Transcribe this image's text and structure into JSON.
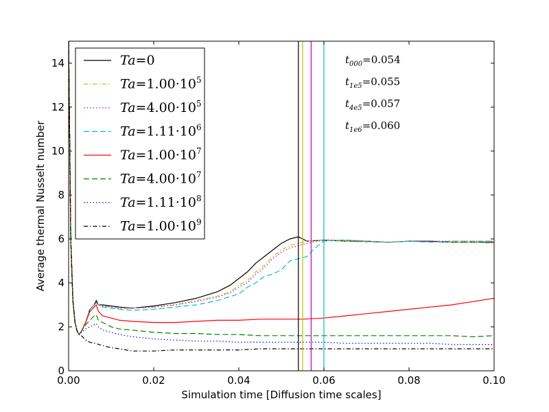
{
  "chart_data": {
    "type": "line",
    "title": "",
    "xlabel": "Simulation time [Diffusion time scales]",
    "ylabel": "Average thermal Nusselt number",
    "xlim": [
      0.0,
      0.1
    ],
    "ylim": [
      0,
      15
    ],
    "xticks": [
      "0.00",
      "0.02",
      "0.04",
      "0.06",
      "0.08",
      "0.10"
    ],
    "xtick_values": [
      0.0,
      0.02,
      0.04,
      0.06,
      0.08,
      0.1
    ],
    "yticks": [
      "0",
      "2",
      "4",
      "6",
      "8",
      "10",
      "12",
      "14"
    ],
    "ytick_values": [
      0,
      2,
      4,
      6,
      8,
      10,
      12,
      14
    ],
    "grid": false,
    "legend_position": "top-left",
    "series": [
      {
        "name": "Ta=0",
        "color": "#000000",
        "dash": "solid",
        "x": [
          0.0,
          0.0005,
          0.001,
          0.0015,
          0.002,
          0.0025,
          0.003,
          0.004,
          0.005,
          0.006,
          0.0065,
          0.007,
          0.008,
          0.01,
          0.012,
          0.015,
          0.02,
          0.025,
          0.03,
          0.035,
          0.038,
          0.04,
          0.042,
          0.044,
          0.046,
          0.048,
          0.05,
          0.052,
          0.054,
          0.056,
          0.06,
          0.065,
          0.07,
          0.075,
          0.08,
          0.085,
          0.09,
          0.095,
          0.1
        ],
        "y": [
          15.0,
          6.0,
          3.2,
          2.2,
          1.8,
          1.65,
          1.8,
          2.2,
          2.8,
          3.0,
          3.2,
          3.0,
          3.0,
          2.95,
          2.9,
          2.85,
          2.95,
          3.1,
          3.3,
          3.6,
          3.9,
          4.2,
          4.5,
          4.9,
          5.2,
          5.5,
          5.8,
          6.0,
          6.1,
          5.9,
          5.95,
          5.9,
          5.9,
          5.85,
          5.9,
          5.9,
          5.85,
          5.85,
          5.85
        ]
      },
      {
        "name": "Ta=1.00·10^5",
        "color": "#bfbf00",
        "dash": "dashdot",
        "x": [
          0.0,
          0.0005,
          0.001,
          0.0015,
          0.002,
          0.0025,
          0.003,
          0.004,
          0.005,
          0.006,
          0.0065,
          0.007,
          0.008,
          0.01,
          0.012,
          0.015,
          0.02,
          0.025,
          0.03,
          0.035,
          0.038,
          0.04,
          0.042,
          0.044,
          0.046,
          0.048,
          0.05,
          0.052,
          0.054,
          0.056,
          0.06,
          0.065,
          0.07,
          0.075,
          0.08,
          0.085,
          0.09,
          0.095,
          0.1
        ],
        "y": [
          15.0,
          6.0,
          3.2,
          2.2,
          1.8,
          1.65,
          1.8,
          2.2,
          2.8,
          3.0,
          3.15,
          3.0,
          2.95,
          2.9,
          2.85,
          2.85,
          2.9,
          3.0,
          3.2,
          3.4,
          3.6,
          3.9,
          4.1,
          4.5,
          4.8,
          5.2,
          5.5,
          5.7,
          5.8,
          5.9,
          5.95,
          5.9,
          5.85,
          5.85,
          5.9,
          5.85,
          5.85,
          5.85,
          5.8
        ]
      },
      {
        "name": "Ta=4.00·10^5",
        "color": "#bf00bf",
        "dash": "dotted",
        "x": [
          0.0,
          0.0005,
          0.001,
          0.0015,
          0.002,
          0.0025,
          0.003,
          0.004,
          0.005,
          0.006,
          0.0065,
          0.007,
          0.008,
          0.01,
          0.012,
          0.015,
          0.02,
          0.025,
          0.03,
          0.035,
          0.038,
          0.04,
          0.042,
          0.044,
          0.046,
          0.048,
          0.05,
          0.052,
          0.054,
          0.056,
          0.06,
          0.065,
          0.07,
          0.075,
          0.08,
          0.085,
          0.09,
          0.095,
          0.1
        ],
        "y": [
          15.0,
          6.0,
          3.2,
          2.2,
          1.8,
          1.65,
          1.8,
          2.2,
          2.8,
          3.0,
          3.15,
          3.0,
          2.95,
          2.9,
          2.85,
          2.85,
          2.9,
          3.0,
          3.15,
          3.35,
          3.55,
          3.8,
          4.0,
          4.4,
          4.7,
          5.1,
          5.4,
          5.6,
          5.7,
          5.8,
          5.95,
          5.95,
          5.9,
          5.85,
          5.9,
          5.9,
          5.9,
          5.9,
          5.9
        ]
      },
      {
        "name": "Ta=1.11·10^6",
        "color": "#00bfbf",
        "dash": "dashed",
        "x": [
          0.0,
          0.0005,
          0.001,
          0.0015,
          0.002,
          0.0025,
          0.003,
          0.004,
          0.005,
          0.006,
          0.0065,
          0.007,
          0.008,
          0.01,
          0.012,
          0.015,
          0.02,
          0.025,
          0.03,
          0.035,
          0.04,
          0.042,
          0.044,
          0.046,
          0.048,
          0.05,
          0.052,
          0.054,
          0.056,
          0.058,
          0.06,
          0.065,
          0.07,
          0.075,
          0.08,
          0.085,
          0.09,
          0.095,
          0.1
        ],
        "y": [
          15.0,
          6.0,
          3.2,
          2.2,
          1.8,
          1.65,
          1.8,
          2.2,
          2.8,
          3.0,
          3.1,
          3.0,
          2.9,
          2.85,
          2.8,
          2.75,
          2.8,
          2.9,
          3.0,
          3.2,
          3.5,
          3.8,
          4.0,
          4.3,
          4.4,
          4.6,
          5.0,
          5.1,
          5.2,
          5.6,
          5.9,
          5.95,
          5.9,
          5.85,
          5.9,
          5.85,
          5.9,
          5.9,
          5.9
        ]
      },
      {
        "name": "Ta=1.00·10^7",
        "color": "#ff0000",
        "dash": "solid",
        "x": [
          0.0,
          0.0005,
          0.001,
          0.0015,
          0.002,
          0.0025,
          0.003,
          0.004,
          0.005,
          0.006,
          0.0065,
          0.007,
          0.008,
          0.01,
          0.012,
          0.015,
          0.02,
          0.025,
          0.03,
          0.035,
          0.04,
          0.045,
          0.05,
          0.055,
          0.06,
          0.065,
          0.07,
          0.075,
          0.08,
          0.085,
          0.09,
          0.095,
          0.1
        ],
        "y": [
          15.0,
          6.0,
          3.2,
          2.2,
          1.8,
          1.65,
          1.8,
          2.2,
          2.7,
          2.9,
          3.0,
          2.7,
          2.5,
          2.4,
          2.3,
          2.25,
          2.2,
          2.2,
          2.25,
          2.3,
          2.3,
          2.35,
          2.35,
          2.35,
          2.4,
          2.5,
          2.6,
          2.7,
          2.8,
          2.9,
          3.0,
          3.15,
          3.3
        ]
      },
      {
        "name": "Ta=4.00·10^7",
        "color": "#008000",
        "dash": "dashed",
        "x": [
          0.0,
          0.0005,
          0.001,
          0.0015,
          0.002,
          0.0025,
          0.003,
          0.004,
          0.005,
          0.006,
          0.0065,
          0.007,
          0.008,
          0.01,
          0.012,
          0.015,
          0.02,
          0.025,
          0.03,
          0.035,
          0.04,
          0.045,
          0.05,
          0.055,
          0.06,
          0.065,
          0.07,
          0.075,
          0.08,
          0.085,
          0.09,
          0.095,
          0.1
        ],
        "y": [
          15.0,
          6.0,
          3.2,
          2.2,
          1.8,
          1.65,
          1.8,
          2.1,
          2.3,
          2.5,
          2.55,
          2.3,
          2.2,
          2.0,
          1.9,
          1.85,
          1.75,
          1.7,
          1.7,
          1.65,
          1.65,
          1.6,
          1.6,
          1.6,
          1.6,
          1.6,
          1.6,
          1.6,
          1.6,
          1.6,
          1.6,
          1.55,
          1.6
        ]
      },
      {
        "name": "Ta=1.11·10^8",
        "color": "#0000ff",
        "dash": "dotted",
        "x": [
          0.0,
          0.0005,
          0.001,
          0.0015,
          0.002,
          0.0025,
          0.003,
          0.004,
          0.005,
          0.006,
          0.0065,
          0.007,
          0.008,
          0.01,
          0.012,
          0.015,
          0.02,
          0.025,
          0.03,
          0.035,
          0.04,
          0.045,
          0.05,
          0.055,
          0.06,
          0.065,
          0.07,
          0.075,
          0.08,
          0.085,
          0.09,
          0.095,
          0.1
        ],
        "y": [
          15.0,
          6.0,
          3.2,
          2.2,
          1.8,
          1.65,
          1.75,
          1.9,
          2.0,
          2.1,
          2.15,
          2.0,
          1.85,
          1.75,
          1.65,
          1.55,
          1.45,
          1.4,
          1.35,
          1.35,
          1.3,
          1.3,
          1.3,
          1.3,
          1.3,
          1.25,
          1.25,
          1.25,
          1.25,
          1.25,
          1.2,
          1.2,
          1.2
        ]
      },
      {
        "name": "Ta=1.00·10^9",
        "color": "#000000",
        "dash": "dashdot",
        "x": [
          0.0,
          0.0005,
          0.001,
          0.0015,
          0.002,
          0.0025,
          0.003,
          0.004,
          0.005,
          0.006,
          0.0065,
          0.007,
          0.008,
          0.01,
          0.012,
          0.015,
          0.02,
          0.025,
          0.03,
          0.035,
          0.04,
          0.045,
          0.05,
          0.055,
          0.06,
          0.065,
          0.07,
          0.075,
          0.08,
          0.085,
          0.09,
          0.095,
          0.1
        ],
        "y": [
          15.0,
          6.0,
          3.2,
          2.2,
          1.8,
          1.65,
          1.6,
          1.4,
          1.3,
          1.25,
          1.25,
          1.2,
          1.15,
          1.05,
          1.0,
          0.9,
          0.9,
          0.95,
          0.95,
          0.95,
          0.95,
          1.0,
          1.0,
          1.0,
          1.0,
          1.0,
          1.0,
          1.0,
          1.0,
          1.0,
          1.0,
          1.0,
          1.0
        ]
      }
    ],
    "legend": [
      {
        "base": "Ta",
        "rhs": "=0",
        "exp": "",
        "color": "#000000",
        "dash": "solid"
      },
      {
        "base": "Ta",
        "rhs": "=1.00·10",
        "exp": "5",
        "color": "#bfbf00",
        "dash": "dashdot"
      },
      {
        "base": "Ta",
        "rhs": "=4.00·10",
        "exp": "5",
        "color": "#bf00bf",
        "dash": "dotted"
      },
      {
        "base": "Ta",
        "rhs": "=1.11·10",
        "exp": "6",
        "color": "#00bfbf",
        "dash": "dashed"
      },
      {
        "base": "Ta",
        "rhs": "=1.00·10",
        "exp": "7",
        "color": "#ff0000",
        "dash": "solid"
      },
      {
        "base": "Ta",
        "rhs": "=4.00·10",
        "exp": "7",
        "color": "#008000",
        "dash": "dashed"
      },
      {
        "base": "Ta",
        "rhs": "=1.11·10",
        "exp": "8",
        "color": "#0000ff",
        "dash": "dotted"
      },
      {
        "base": "Ta",
        "rhs": "=1.00·10",
        "exp": "9",
        "color": "#000000",
        "dash": "dashdot"
      }
    ],
    "vlines": [
      {
        "x": 0.054,
        "color": "#000000"
      },
      {
        "x": 0.055,
        "color": "#bfbf00"
      },
      {
        "x": 0.057,
        "color": "#bf00bf"
      },
      {
        "x": 0.06,
        "color": "#00bfbf"
      }
    ],
    "annotations": [
      {
        "base": "t",
        "sub": "000",
        "value": "=0.054"
      },
      {
        "base": "t",
        "sub": "1e5",
        "value": "=0.055"
      },
      {
        "base": "t",
        "sub": "4e5",
        "value": "=0.057"
      },
      {
        "base": "t",
        "sub": "1e6",
        "value": "=0.060"
      }
    ]
  }
}
